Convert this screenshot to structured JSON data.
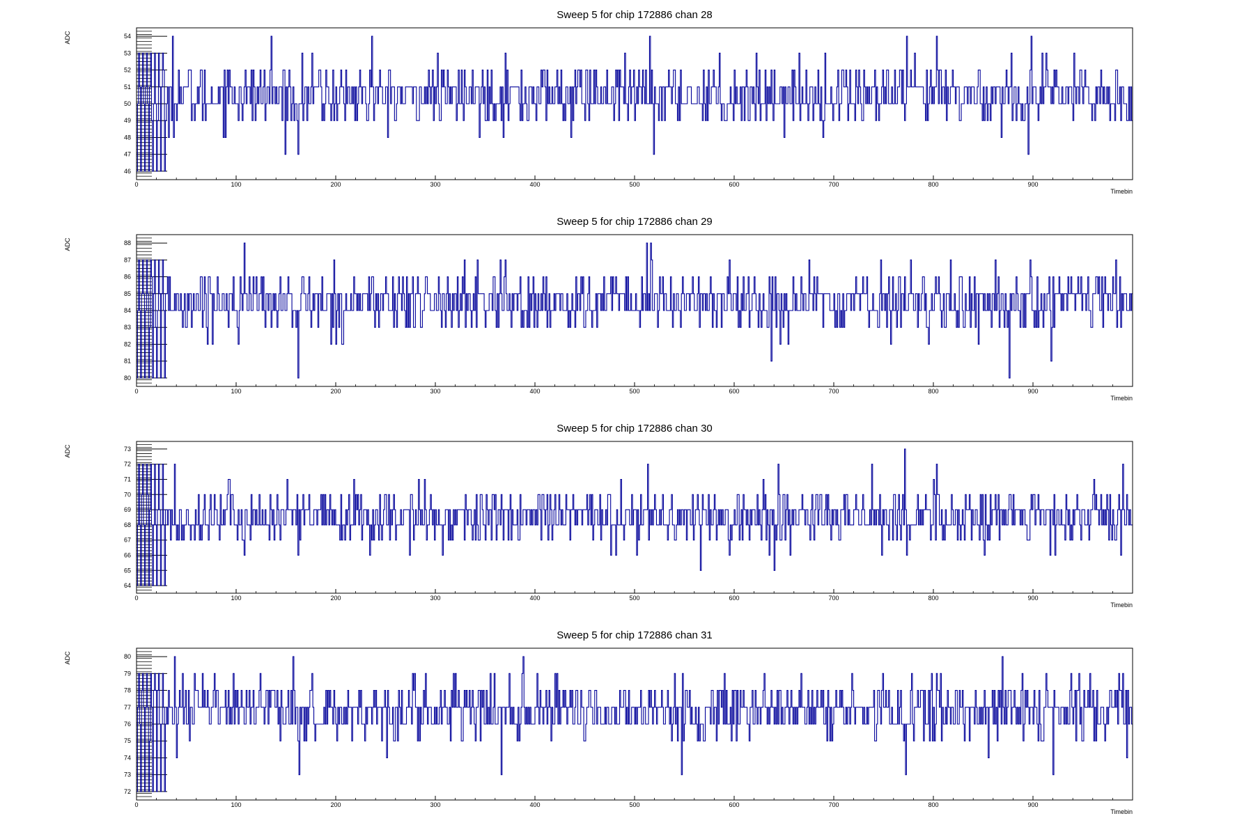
{
  "colors": {
    "series": "#000099",
    "frame": "#000000",
    "background": "#ffffff"
  },
  "chart_data": [
    {
      "type": "line",
      "title": "Sweep 5 for chip 172886 chan 28",
      "xlabel": "Timebin",
      "ylabel": "ADC",
      "xlim": [
        0,
        1000
      ],
      "ylim": [
        45.5,
        54.5
      ],
      "xticks": [
        0,
        100,
        200,
        300,
        400,
        500,
        600,
        700,
        800,
        900
      ],
      "yticks": [
        46,
        47,
        48,
        49,
        50,
        51,
        52,
        53,
        54
      ],
      "step": true,
      "series": [
        {
          "baseline": 50.5,
          "noise_sd": 0.9,
          "min": 46,
          "max": 54,
          "spikes": [
            [
              36,
              54
            ],
            [
              37,
              48
            ],
            [
              135,
              54
            ],
            [
              162,
              47
            ],
            [
              236,
              54
            ],
            [
              515,
              54
            ],
            [
              519,
              47
            ],
            [
              773,
              54
            ],
            [
              803,
              54
            ],
            [
              898,
              54
            ],
            [
              895,
              47
            ]
          ]
        }
      ],
      "grid": false,
      "legend": "none"
    },
    {
      "type": "line",
      "title": "Sweep 5 for chip 172886 chan 29",
      "xlabel": "Timebin",
      "ylabel": "ADC",
      "xlim": [
        0,
        1000
      ],
      "ylim": [
        79.5,
        88.5
      ],
      "xticks": [
        0,
        100,
        200,
        300,
        400,
        500,
        600,
        700,
        800,
        900
      ],
      "yticks": [
        80,
        81,
        82,
        83,
        84,
        85,
        86,
        87,
        88
      ],
      "step": true,
      "series": [
        {
          "baseline": 84.5,
          "noise_sd": 0.9,
          "min": 80,
          "max": 88,
          "spikes": [
            [
              108,
              88
            ],
            [
              162,
              80
            ],
            [
              512,
              88
            ],
            [
              516,
              88
            ],
            [
              637,
              81
            ],
            [
              876,
              80
            ],
            [
              918,
              81
            ],
            [
              365,
              87
            ],
            [
              897,
              87
            ]
          ]
        }
      ],
      "grid": false,
      "legend": "none"
    },
    {
      "type": "line",
      "title": "Sweep 5 for chip 172886 chan 30",
      "xlabel": "Timebin",
      "ylabel": "ADC",
      "xlim": [
        0,
        1000
      ],
      "ylim": [
        63.5,
        73.5
      ],
      "xticks": [
        0,
        100,
        200,
        300,
        400,
        500,
        600,
        700,
        800,
        900
      ],
      "yticks": [
        64,
        65,
        66,
        67,
        68,
        69,
        70,
        71,
        72,
        73
      ],
      "step": true,
      "series": [
        {
          "baseline": 68.5,
          "noise_sd": 0.95,
          "min": 64,
          "max": 73,
          "spikes": [
            [
              38,
              72
            ],
            [
              513,
              72
            ],
            [
              640,
              65
            ],
            [
              644,
              72
            ],
            [
              771,
              73
            ],
            [
              803,
              72
            ],
            [
              990,
              72
            ],
            [
              162,
              66
            ],
            [
              917,
              66
            ]
          ]
        }
      ],
      "grid": false,
      "legend": "none"
    },
    {
      "type": "line",
      "title": "Sweep 5 for chip 172886 chan 31",
      "xlabel": "Timebin",
      "ylabel": "ADC",
      "xlim": [
        0,
        1000
      ],
      "ylim": [
        71.5,
        80.5
      ],
      "xticks": [
        0,
        100,
        200,
        300,
        400,
        500,
        600,
        700,
        800,
        900
      ],
      "yticks": [
        72,
        73,
        74,
        75,
        76,
        77,
        78,
        79,
        80
      ],
      "step": true,
      "series": [
        {
          "baseline": 76.8,
          "noise_sd": 0.9,
          "min": 72,
          "max": 80,
          "spikes": [
            [
              38,
              80
            ],
            [
              157,
              80
            ],
            [
              163,
              73
            ],
            [
              366,
              73
            ],
            [
              388,
              80
            ],
            [
              547,
              73
            ],
            [
              772,
              73
            ],
            [
              869,
              80
            ],
            [
              920,
              73
            ],
            [
              40,
              74
            ],
            [
              994,
              74
            ]
          ]
        }
      ],
      "grid": false,
      "legend": "none"
    }
  ]
}
